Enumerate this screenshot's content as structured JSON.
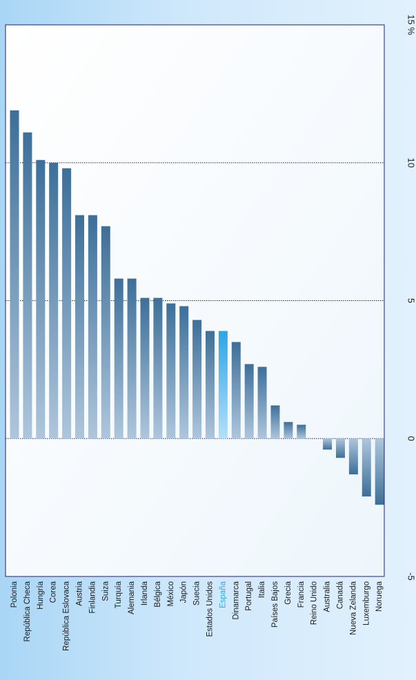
{
  "chart_data": {
    "type": "bar",
    "orientation": "rotated-vertical",
    "categories": [
      "Polonia",
      "República Checa",
      "Hungría",
      "Corea",
      "República Eslovaca",
      "Austria",
      "Finlandia",
      "Suiza",
      "Turquía",
      "Alemania",
      "Irlanda",
      "Bélgica",
      "México",
      "Japón",
      "Suecia",
      "Estados Unidos",
      "España",
      "Dinamarca",
      "Portugal",
      "Italia",
      "Países Bajos",
      "Grecia",
      "Francia",
      "Reino Unido",
      "Australia",
      "Canadá",
      "Nueva Zelanda",
      "Luxemburgo",
      "Noruega"
    ],
    "values": [
      11.9,
      11.1,
      10.1,
      10.0,
      9.8,
      8.1,
      8.1,
      7.7,
      5.8,
      5.8,
      5.1,
      5.1,
      4.9,
      4.8,
      4.3,
      3.9,
      3.9,
      3.5,
      2.7,
      2.6,
      1.2,
      0.6,
      0.5,
      0.0,
      -0.4,
      -0.7,
      -1.3,
      -2.1,
      -2.4
    ],
    "highlight": "España",
    "value_ticks": [
      -5,
      0,
      5,
      10,
      "15 %"
    ],
    "ylim": [
      -5,
      15
    ],
    "grid": true,
    "colors": {
      "bar_dark": "#3d6f99",
      "bar_light": "#aec6dc",
      "highlight_dark": "#2aa6e6",
      "highlight_light": "#b5e0f7",
      "gridline": "#1f1f6e",
      "frame": "#1f1f6e",
      "label_text": "#1a1a1a",
      "highlight_text": "#29a9ea"
    }
  }
}
